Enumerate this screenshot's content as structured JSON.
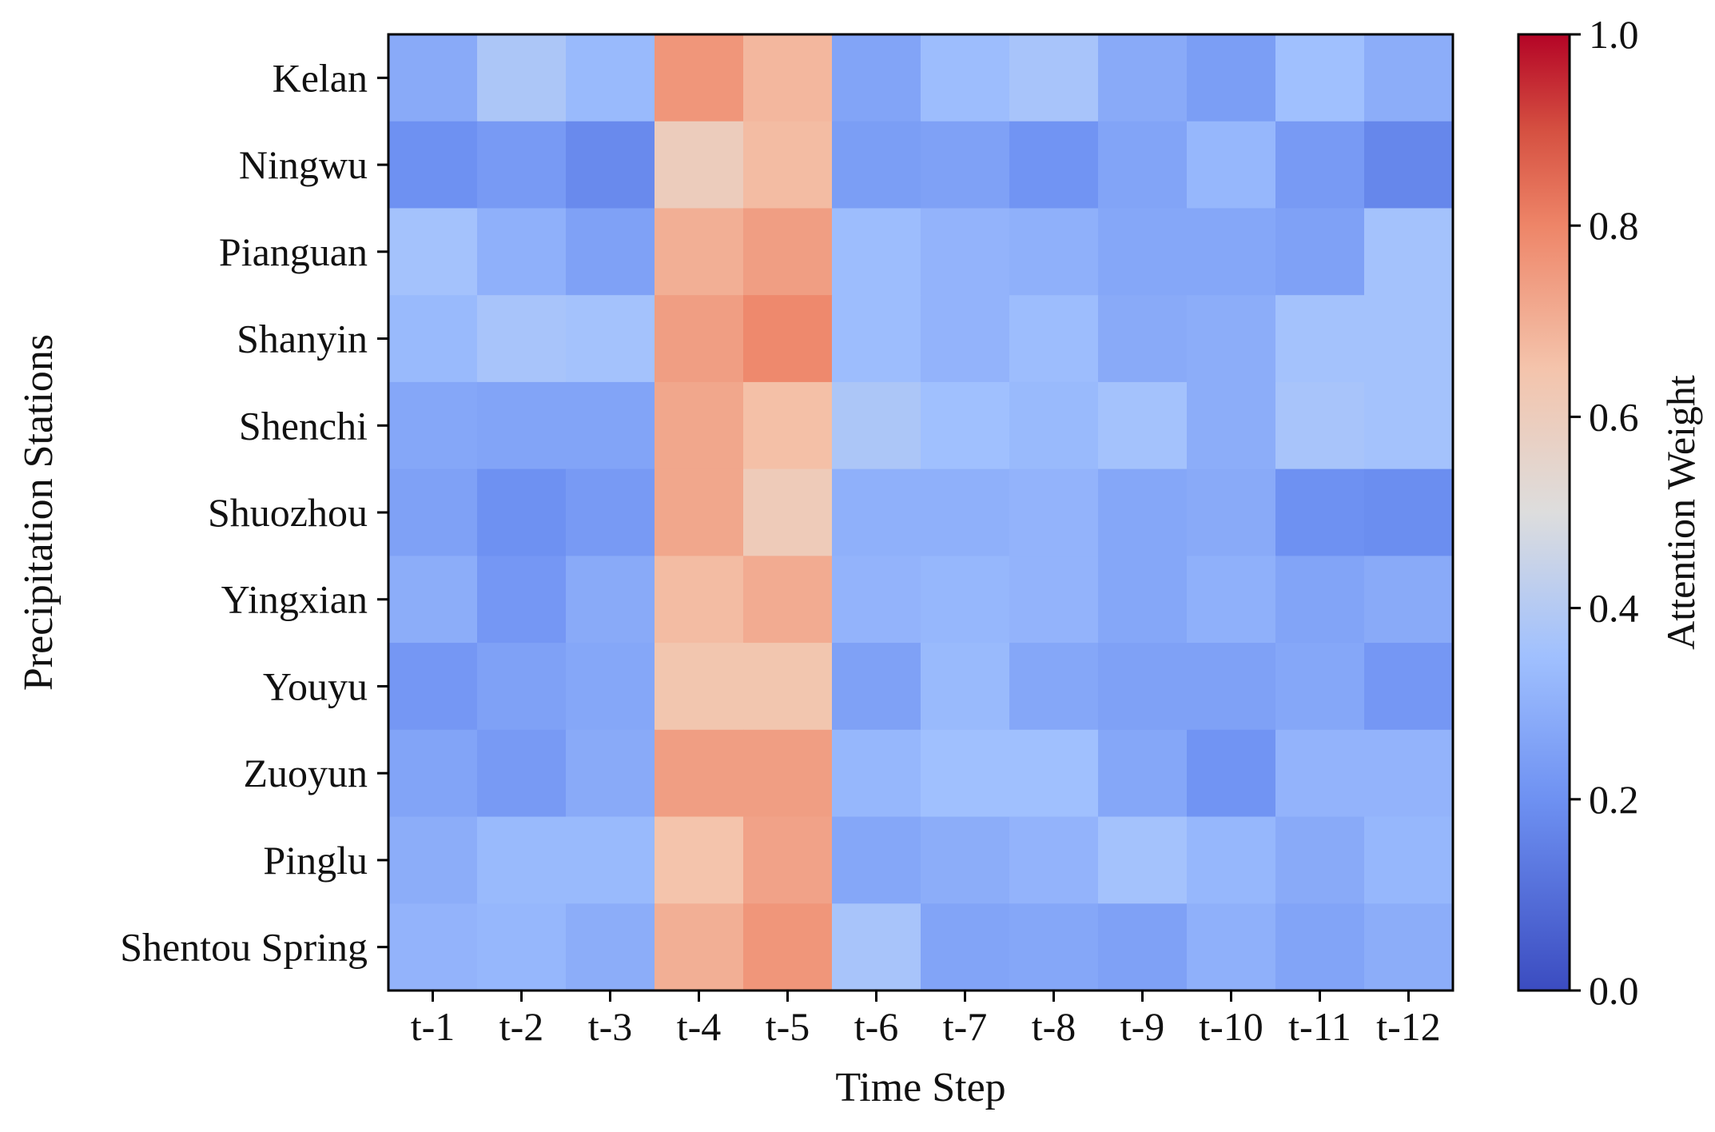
{
  "chart_data": {
    "type": "heatmap",
    "title": "",
    "xlabel": "Time Step",
    "ylabel": "Precipitation Stations",
    "x_categories": [
      "t-1",
      "t-2",
      "t-3",
      "t-4",
      "t-5",
      "t-6",
      "t-7",
      "t-8",
      "t-9",
      "t-10",
      "t-11",
      "t-12"
    ],
    "y_categories": [
      "Kelan",
      "Ningwu",
      "Pianguan",
      "Shanyin",
      "Shenchi",
      "Shuozhou",
      "Yingxian",
      "Youyu",
      "Zuoyun",
      "Pinglu",
      "Shentou Spring"
    ],
    "values": [
      [
        0.28,
        0.38,
        0.33,
        0.76,
        0.68,
        0.26,
        0.34,
        0.37,
        0.28,
        0.24,
        0.35,
        0.29
      ],
      [
        0.2,
        0.23,
        0.18,
        0.6,
        0.67,
        0.24,
        0.25,
        0.21,
        0.26,
        0.32,
        0.23,
        0.17
      ],
      [
        0.36,
        0.3,
        0.25,
        0.7,
        0.74,
        0.34,
        0.31,
        0.3,
        0.27,
        0.27,
        0.25,
        0.36
      ],
      [
        0.33,
        0.37,
        0.36,
        0.74,
        0.79,
        0.34,
        0.31,
        0.34,
        0.28,
        0.29,
        0.36,
        0.36
      ],
      [
        0.27,
        0.26,
        0.26,
        0.72,
        0.66,
        0.38,
        0.35,
        0.33,
        0.36,
        0.29,
        0.37,
        0.36
      ],
      [
        0.25,
        0.2,
        0.23,
        0.72,
        0.61,
        0.3,
        0.3,
        0.31,
        0.27,
        0.28,
        0.2,
        0.19
      ],
      [
        0.29,
        0.22,
        0.28,
        0.67,
        0.71,
        0.31,
        0.32,
        0.31,
        0.27,
        0.3,
        0.26,
        0.28
      ],
      [
        0.22,
        0.25,
        0.27,
        0.64,
        0.64,
        0.25,
        0.33,
        0.27,
        0.25,
        0.25,
        0.27,
        0.22
      ],
      [
        0.26,
        0.23,
        0.28,
        0.74,
        0.74,
        0.32,
        0.35,
        0.35,
        0.27,
        0.21,
        0.31,
        0.31
      ],
      [
        0.29,
        0.33,
        0.33,
        0.65,
        0.73,
        0.27,
        0.29,
        0.31,
        0.36,
        0.32,
        0.28,
        0.32
      ],
      [
        0.31,
        0.32,
        0.29,
        0.7,
        0.76,
        0.37,
        0.26,
        0.27,
        0.25,
        0.3,
        0.26,
        0.29
      ]
    ],
    "colorbar": {
      "label": "Attention Weight",
      "range": [
        0.0,
        1.0
      ],
      "ticks": [
        "0.0",
        "0.2",
        "0.4",
        "0.6",
        "0.8",
        "1.0"
      ],
      "colormap": "coolwarm"
    }
  }
}
